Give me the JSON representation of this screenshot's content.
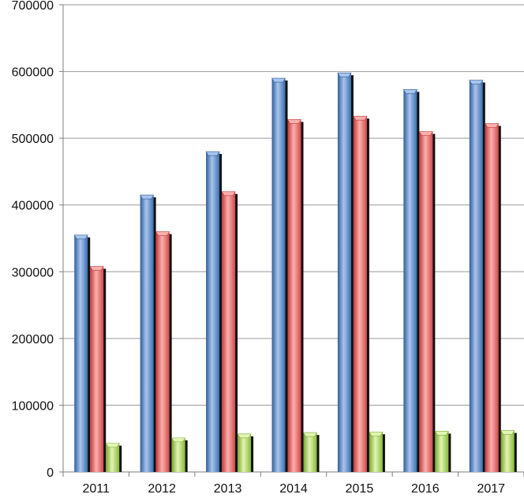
{
  "chart_data": {
    "type": "bar",
    "categories": [
      "2011",
      "2012",
      "2013",
      "2014",
      "2015",
      "2016",
      "2017"
    ],
    "series": [
      {
        "values": [
          355000,
          415000,
          480000,
          590000,
          598000,
          573000,
          587000
        ]
      },
      {
        "values": [
          308000,
          360000,
          420000,
          528000,
          533000,
          510000,
          522000
        ]
      },
      {
        "values": [
          43000,
          51000,
          57000,
          59000,
          60000,
          61000,
          62000
        ]
      }
    ],
    "ylim": [
      0,
      700000
    ],
    "yticks": [
      0,
      100000,
      200000,
      300000,
      400000,
      500000,
      600000,
      700000
    ],
    "ytick_labels": [
      "0",
      "100000",
      "200000",
      "300000",
      "400000",
      "500000",
      "600000",
      "700000"
    ],
    "grid": true,
    "legend": "none",
    "colors": [
      "#4f81bd",
      "#e8605e",
      "#9ccb4f"
    ]
  }
}
